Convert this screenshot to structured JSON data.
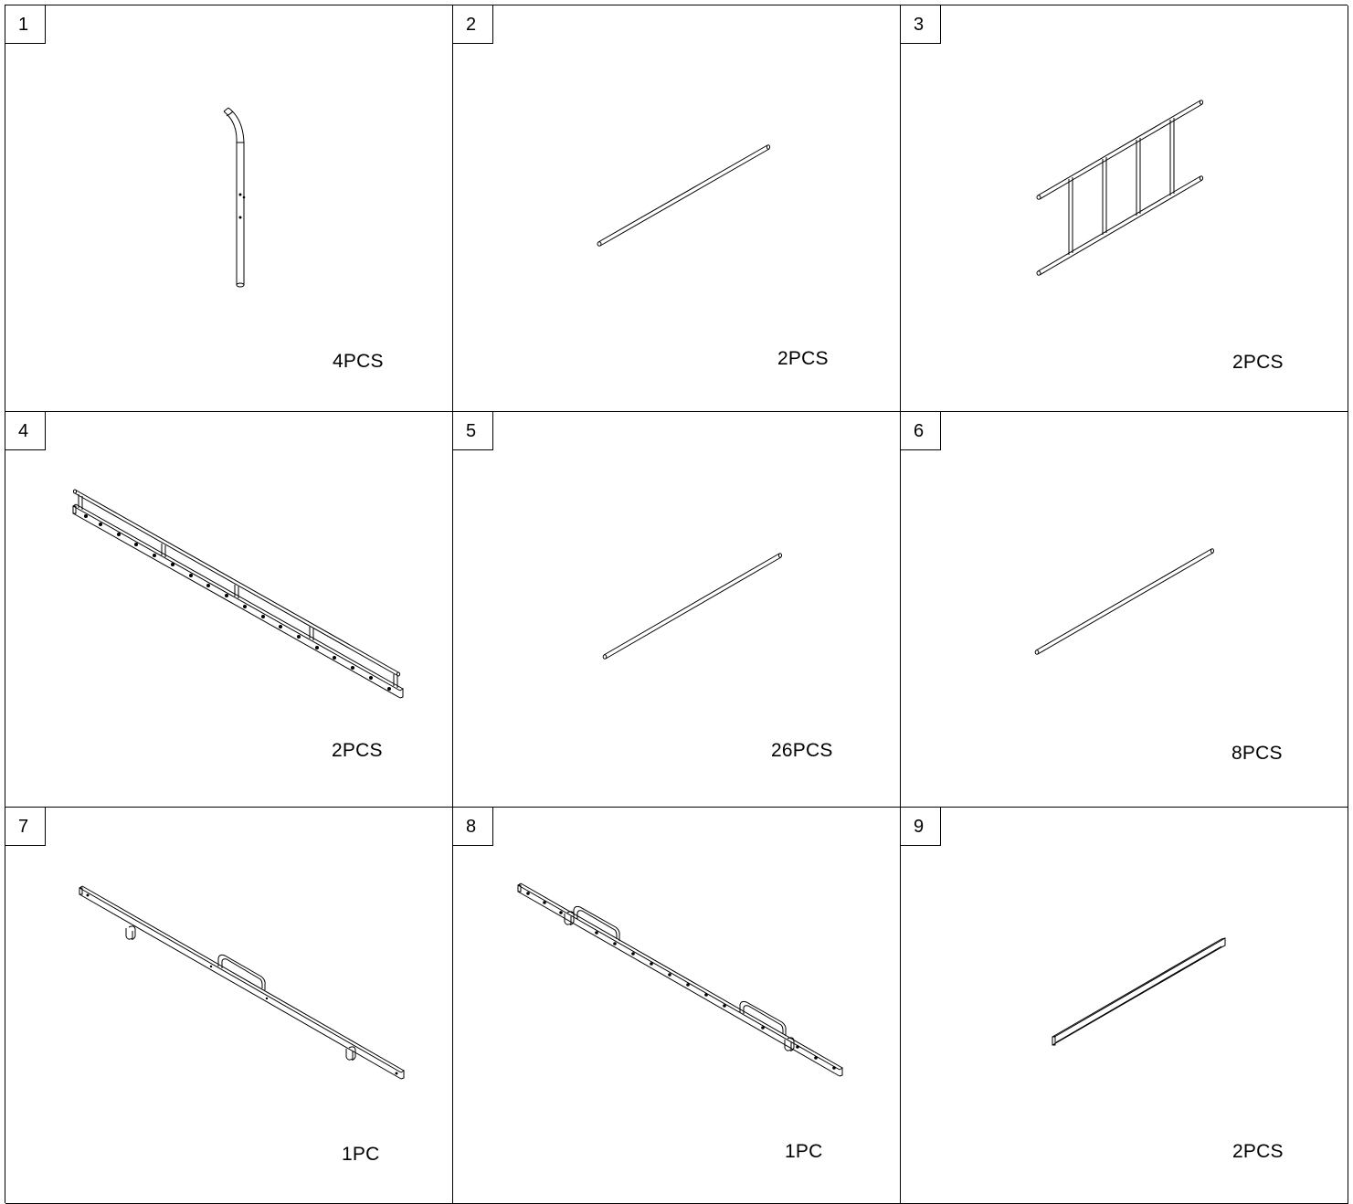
{
  "parts": [
    {
      "number": "1",
      "quantity": "4PCS",
      "icon": "curved-upright-post-icon"
    },
    {
      "number": "2",
      "quantity": "2PCS",
      "icon": "long-round-tube-icon"
    },
    {
      "number": "3",
      "quantity": "2PCS",
      "icon": "ladder-end-frame-icon"
    },
    {
      "number": "4",
      "quantity": "2PCS",
      "icon": "double-rail-side-frame-icon"
    },
    {
      "number": "5",
      "quantity": "26PCS",
      "icon": "slat-tube-icon"
    },
    {
      "number": "6",
      "quantity": "8PCS",
      "icon": "short-tube-icon"
    },
    {
      "number": "7",
      "quantity": "1PC",
      "icon": "center-rail-with-handle-icon"
    },
    {
      "number": "8",
      "quantity": "1PC",
      "icon": "drilled-center-rail-icon"
    },
    {
      "number": "9",
      "quantity": "2PCS",
      "icon": "square-bar-icon"
    }
  ],
  "colors": {
    "line": "#000000",
    "background": "#ffffff"
  }
}
